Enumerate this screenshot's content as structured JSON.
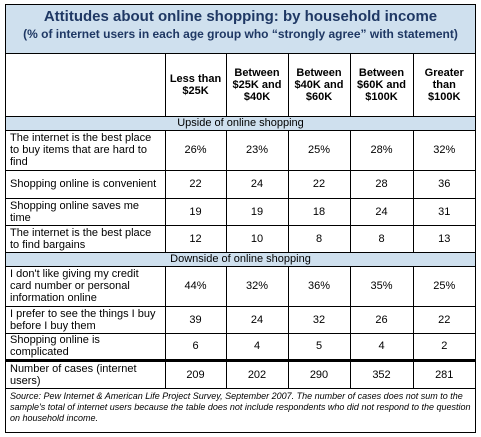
{
  "chart_data": {
    "type": "table",
    "title": "Attitudes about online shopping: by household income",
    "subtitle": "(% of internet users in each age group who “strongly agree” with statement)",
    "columns": [
      "Less than $25K",
      "Between $25K and $40K",
      "Between $40K and $60K",
      "Between $60K and $100K",
      "Greater than $100K"
    ],
    "sections": [
      {
        "label": "Upside of online shopping",
        "rows": [
          {
            "label": "The internet is the best place to buy items that are hard to find",
            "values": [
              "26%",
              "23%",
              "25%",
              "28%",
              "32%"
            ]
          },
          {
            "label": "Shopping online is convenient",
            "values": [
              "22",
              "24",
              "22",
              "28",
              "36"
            ]
          },
          {
            "label": "Shopping online saves me time",
            "values": [
              "19",
              "19",
              "18",
              "24",
              "31"
            ]
          },
          {
            "label": "The internet is the best place to find bargains",
            "values": [
              "12",
              "10",
              "8",
              "8",
              "13"
            ]
          }
        ]
      },
      {
        "label": "Downside of online shopping",
        "rows": [
          {
            "label": "I don't like giving my credit card number or personal information online",
            "values": [
              "44%",
              "32%",
              "36%",
              "35%",
              "25%"
            ]
          },
          {
            "label": "I prefer to see the things I buy before I buy them",
            "values": [
              "39",
              "24",
              "32",
              "26",
              "22"
            ]
          },
          {
            "label": "Shopping online is complicated",
            "values": [
              "6",
              "4",
              "5",
              "4",
              "2"
            ]
          }
        ]
      }
    ],
    "cases": {
      "label": "Number of cases (internet users)",
      "values": [
        "209",
        "202",
        "290",
        "352",
        "281"
      ]
    },
    "source": "Source: Pew Internet & American Life Project Survey, September 2007. The number of cases does not sum to the sample's total of internet users because the table does not include respondents who did not respond to the question on household income."
  },
  "colors": {
    "header_fill": "#cfe0ee",
    "title_text": "#1f3864",
    "border": "#000000"
  }
}
